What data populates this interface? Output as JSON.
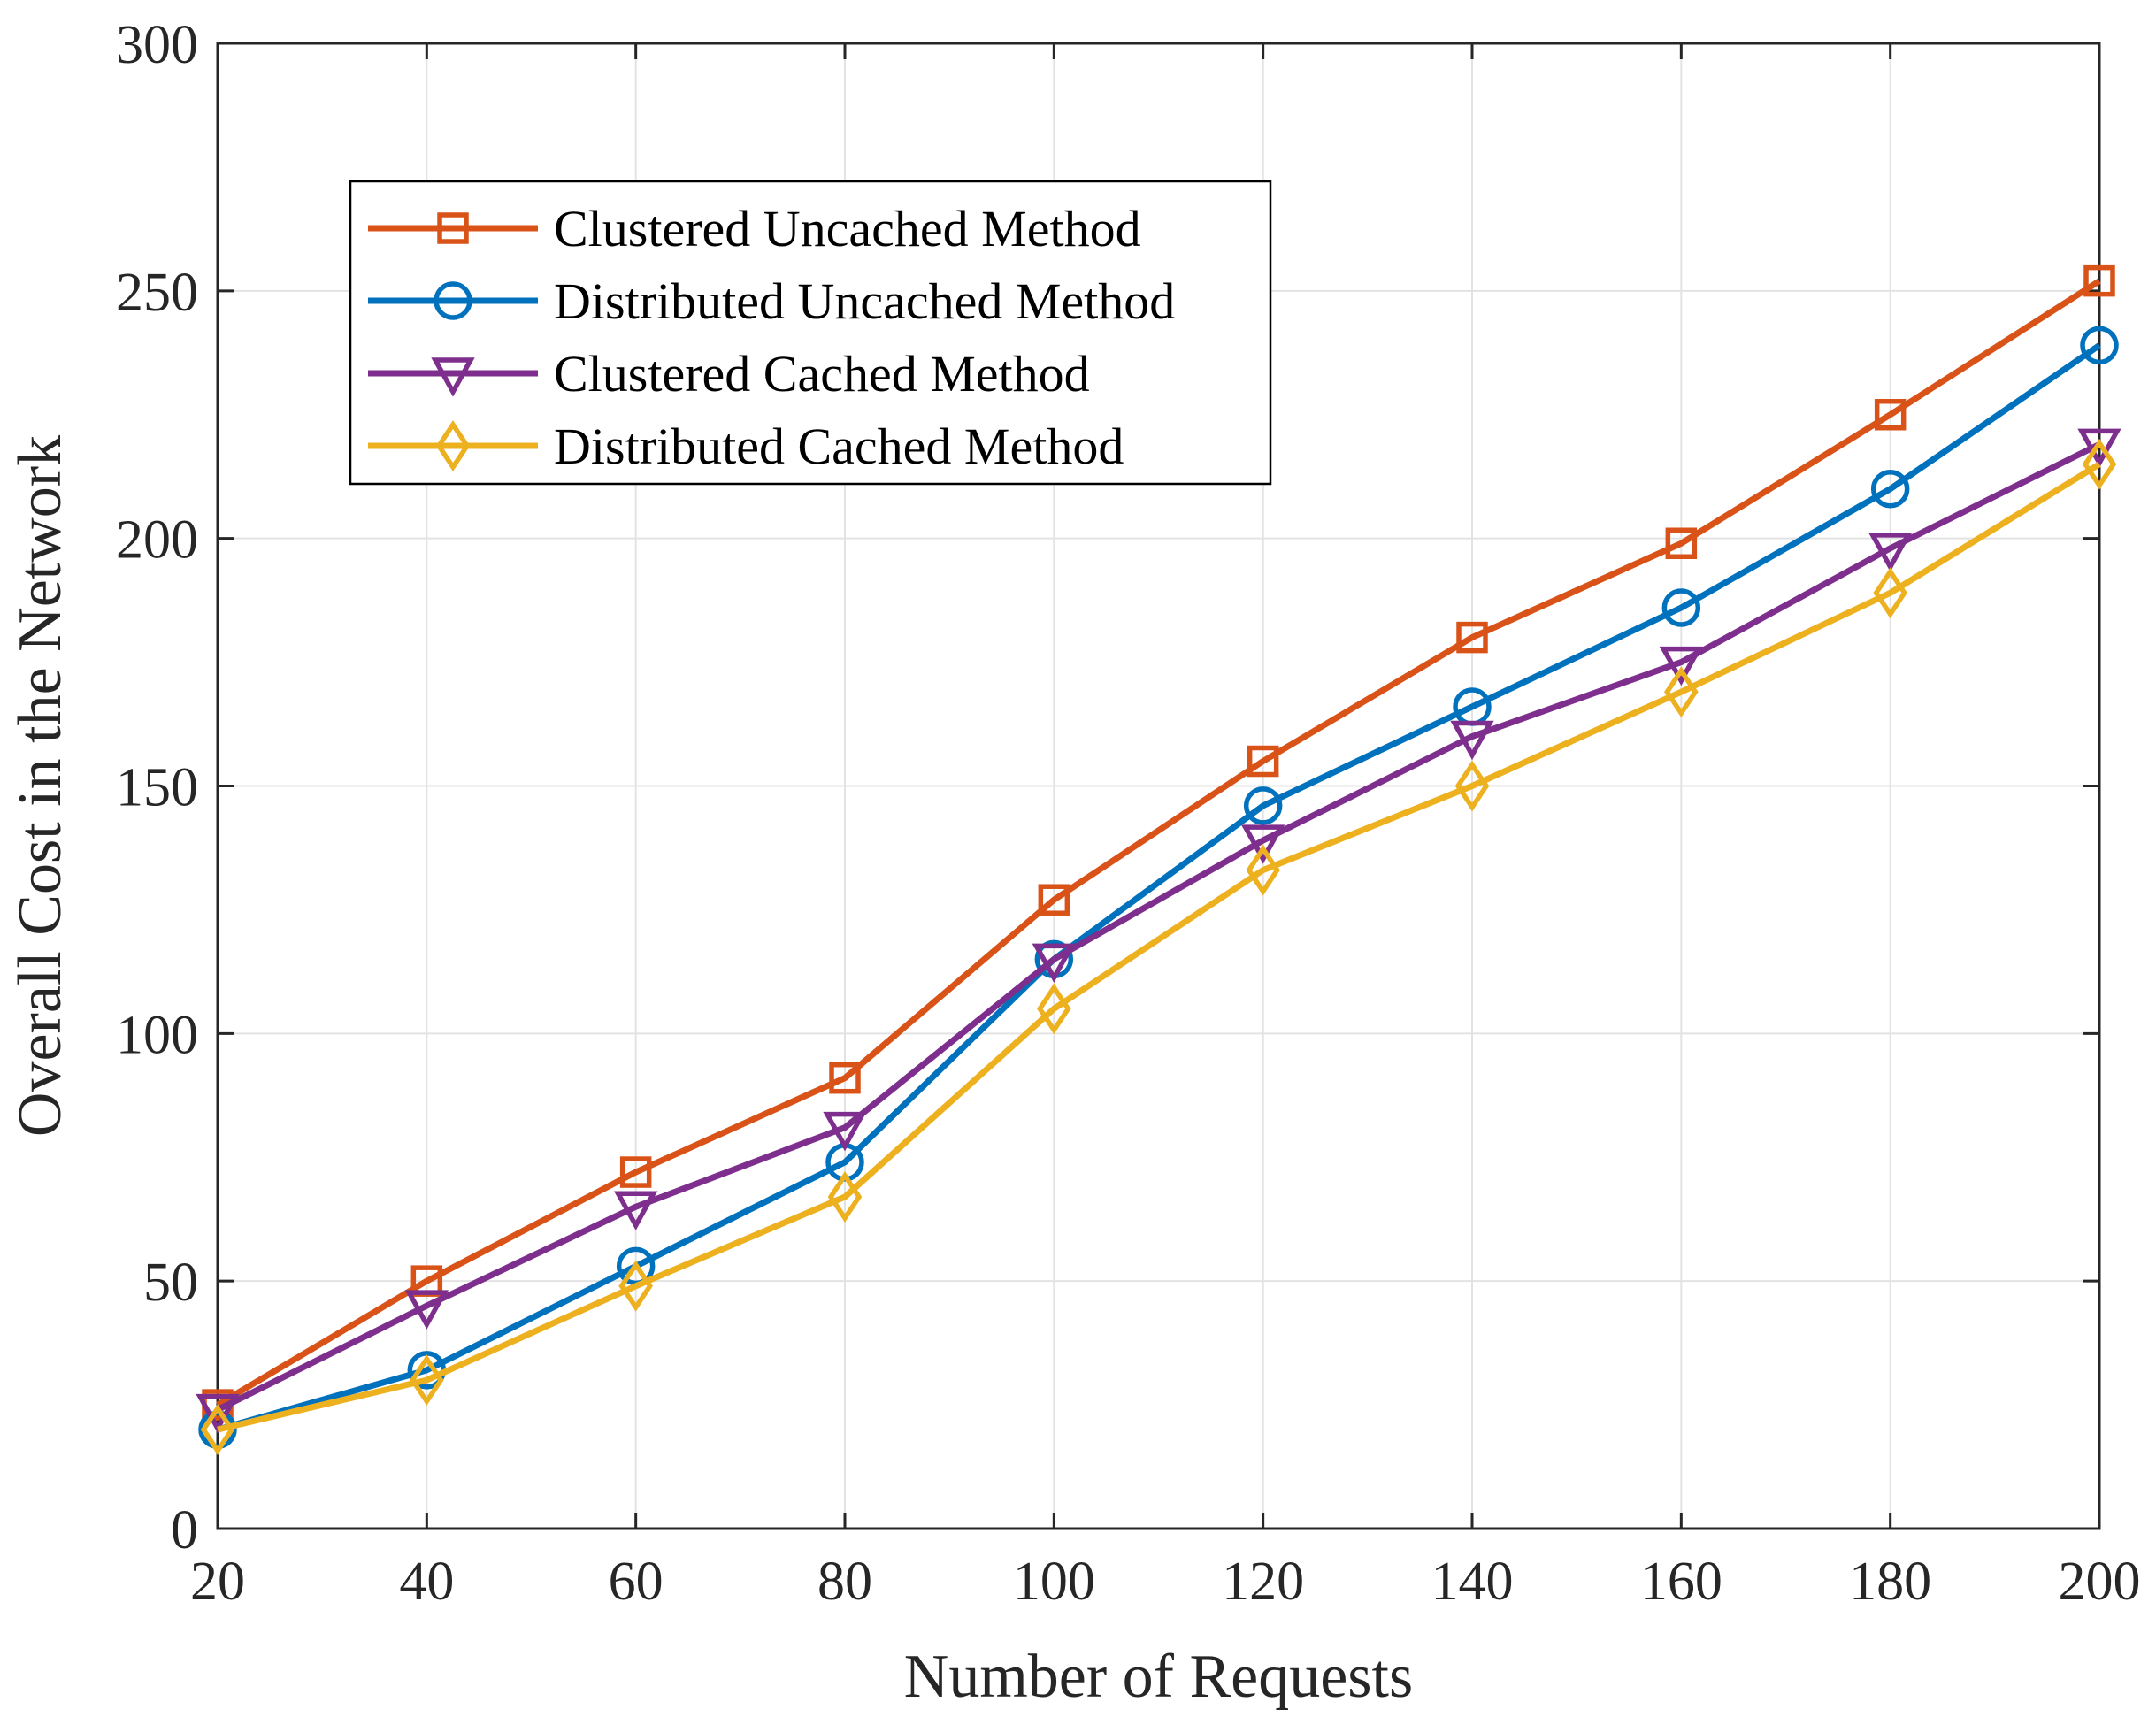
{
  "chart_data": {
    "type": "line",
    "title": "",
    "xlabel": "Number of Requests",
    "ylabel": "Overall Cost in the Network",
    "x": [
      20,
      40,
      60,
      80,
      100,
      120,
      140,
      160,
      180,
      200
    ],
    "xlim": [
      20,
      200
    ],
    "ylim": [
      0,
      300
    ],
    "xticks": [
      "20",
      "40",
      "60",
      "80",
      "100",
      "120",
      "140",
      "160",
      "180",
      "200"
    ],
    "yticks": [
      "0",
      "50",
      "100",
      "150",
      "200",
      "250",
      "300"
    ],
    "grid": true,
    "legend_position": "top-left",
    "series": [
      {
        "name": "Clustered Uncached Method",
        "color": "#D95319",
        "marker": "square",
        "values": [
          25,
          50,
          72,
          91,
          127,
          155,
          180,
          199,
          225,
          252
        ]
      },
      {
        "name": "Distributed Uncached Method",
        "color": "#0072BD",
        "marker": "circle",
        "values": [
          20,
          32,
          53,
          74,
          115,
          146,
          166,
          186,
          210,
          239
        ]
      },
      {
        "name": "Clustered Cached Method",
        "color": "#7E2F8E",
        "marker": "triangle-down",
        "values": [
          24,
          45,
          65,
          81,
          115,
          139,
          160,
          175,
          198,
          219
        ]
      },
      {
        "name": "Distributed Cached Method",
        "color": "#EDB120",
        "marker": "diamond",
        "values": [
          20,
          30,
          49,
          67,
          105,
          133,
          150,
          169,
          189,
          215
        ]
      }
    ]
  }
}
